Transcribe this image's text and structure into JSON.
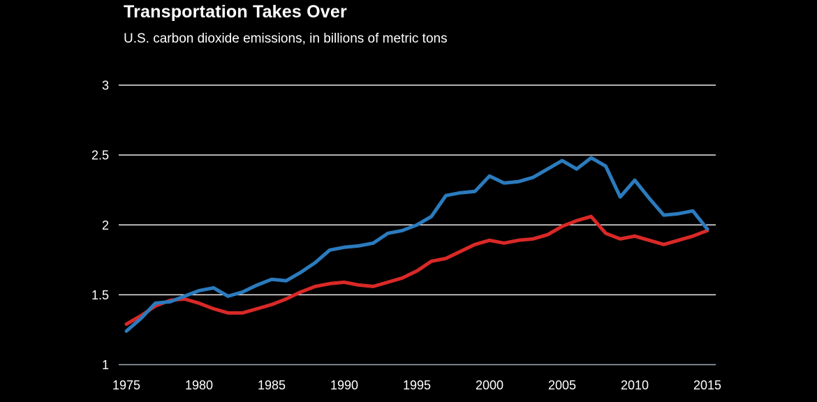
{
  "header": {
    "title": "Transportation Takes Over",
    "subtitle": "U.S. carbon dioxide emissions, in billions of metric tons"
  },
  "chart_data": {
    "type": "line",
    "title": "Transportation Takes Over",
    "subtitle": "U.S. carbon dioxide emissions, in billions of metric tons",
    "xlabel": "",
    "ylabel": "billions of metric tons",
    "x": [
      1975,
      1976,
      1977,
      1978,
      1979,
      1980,
      1981,
      1982,
      1983,
      1984,
      1985,
      1986,
      1987,
      1988,
      1989,
      1990,
      1991,
      1992,
      1993,
      1994,
      1995,
      1996,
      1997,
      1998,
      1999,
      2000,
      2001,
      2002,
      2003,
      2004,
      2005,
      2006,
      2007,
      2008,
      2009,
      2010,
      2011,
      2012,
      2013,
      2014,
      2015
    ],
    "series": [
      {
        "name": "red-line",
        "color": "#d92927",
        "values": [
          1.29,
          1.35,
          1.42,
          1.46,
          1.47,
          1.44,
          1.4,
          1.37,
          1.37,
          1.4,
          1.43,
          1.47,
          1.52,
          1.56,
          1.58,
          1.59,
          1.57,
          1.56,
          1.59,
          1.62,
          1.67,
          1.74,
          1.76,
          1.81,
          1.86,
          1.89,
          1.87,
          1.89,
          1.9,
          1.93,
          1.99,
          2.03,
          2.06,
          1.94,
          1.9,
          1.92,
          1.89,
          1.86,
          1.89,
          1.92,
          1.96
        ]
      },
      {
        "name": "blue-line",
        "color": "#2b7bbe",
        "values": [
          1.24,
          1.33,
          1.44,
          1.45,
          1.49,
          1.53,
          1.55,
          1.49,
          1.52,
          1.57,
          1.61,
          1.6,
          1.66,
          1.73,
          1.82,
          1.84,
          1.85,
          1.87,
          1.94,
          1.96,
          2.0,
          2.06,
          2.21,
          2.23,
          2.24,
          2.35,
          2.3,
          2.31,
          2.34,
          2.4,
          2.46,
          2.4,
          2.48,
          2.42,
          2.2,
          2.32,
          2.19,
          2.07,
          2.08,
          2.1,
          1.97
        ]
      }
    ],
    "xticks": [
      1975,
      1980,
      1985,
      1990,
      1995,
      2000,
      2005,
      2010,
      2015
    ],
    "yticks": [
      1,
      1.5,
      2,
      2.5,
      3
    ],
    "ytick_labels": [
      "1",
      "1.5",
      "2",
      "2.5",
      "3"
    ],
    "ylim": [
      1,
      3
    ],
    "xlim": [
      1975,
      2015
    ],
    "grid": "horizontal",
    "legend": "none",
    "colors": {
      "background": "#000000",
      "text": "#ffffff",
      "gridline": "#ebebeb",
      "baseline": "#a4adb8"
    }
  }
}
